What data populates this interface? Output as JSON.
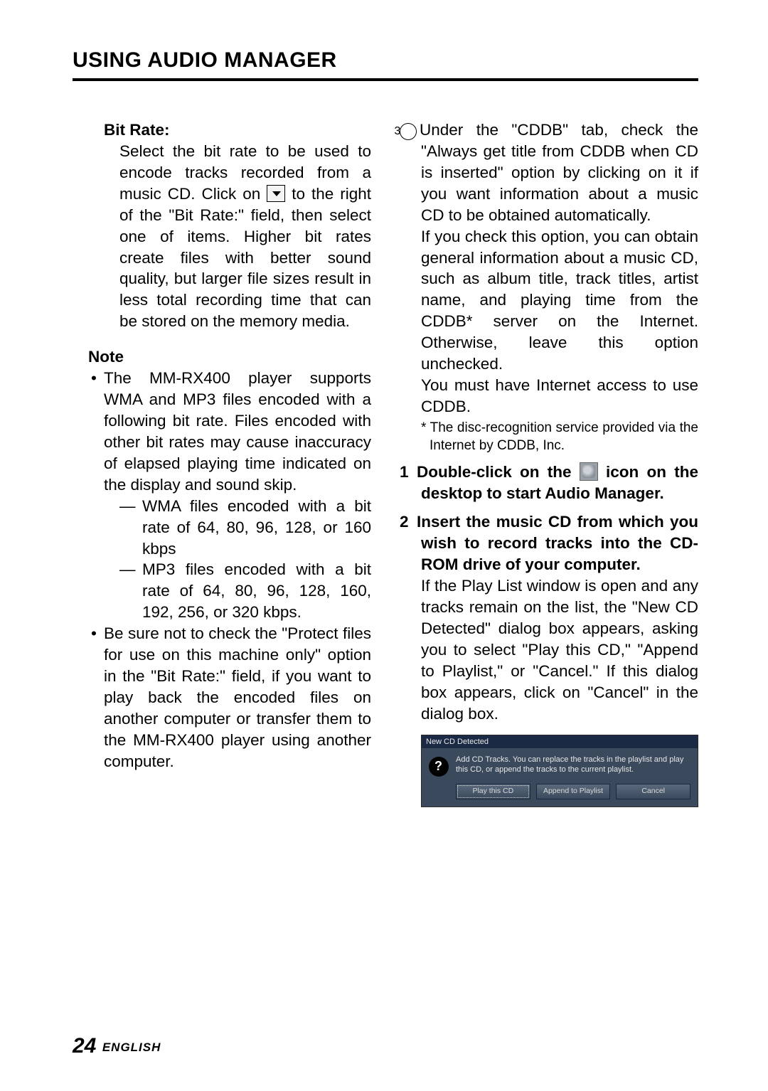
{
  "title": "USING AUDIO MANAGER",
  "left": {
    "bitrate_label": "Bit Rate:",
    "bitrate_body_a": "Select the bit rate to be used to encode tracks recorded from a music CD. Click on",
    "bitrate_body_b": "to the right of the \"Bit Rate:\" field, then select one of items. Higher bit rates create files with better sound quality, but larger file sizes result in less total recording time that can be stored on the memory media.",
    "note_label": "Note",
    "note1": "The MM-RX400 player supports WMA and MP3 files encoded with a following bit rate. Files encoded with other bit rates may cause inaccuracy of elapsed playing time indicated on the display and sound skip.",
    "dash1": "WMA files encoded with a bit rate of 64, 80, 96, 128, or 160 kbps",
    "dash2": "MP3 files encoded with a bit rate of 64, 80, 96, 128, 160, 192, 256, or 320 kbps.",
    "note2": "Be sure not to check the \"Protect files for use on this machine only\" option in the \"Bit Rate:\" field, if you want to play back the encoded files on another computer or transfer them to the MM-RX400 player using another computer."
  },
  "right": {
    "step3_num": "3",
    "step3_a": "Under the \"CDDB\" tab, check the \"Always get title from CDDB when CD is inserted\" option by clicking on it if you want information about a music CD to be obtained automatically.",
    "step3_b": "If you check this option, you can obtain general information about a music CD, such as album title, track titles, artist name, and playing time from the CDDB* server on the Internet. Otherwise, leave this option unchecked.",
    "step3_c": "You must have Internet access to use CDDB.",
    "footnote": "* The disc-recognition service provided via the Internet by CDDB, Inc.",
    "s1_num": "1",
    "s1_a": "Double-click on the",
    "s1_b": "icon on the desktop to start Audio Manager.",
    "s2_num": "2",
    "s2_bold": "Insert the music CD from which you wish to record tracks into the CD-ROM drive of your computer.",
    "s2_body": "If the Play List window is open and any tracks remain on the list, the \"New CD Detected\" dialog box appears, asking you to select \"Play this CD,\" \"Append to Playlist,\" or \"Cancel.\" If this dialog box appears, click on \"Cancel\" in the dialog box."
  },
  "dialog": {
    "title": "New CD Detected",
    "msg": "Add CD Tracks.  You can replace the tracks in the playlist and play this CD, or append the tracks to the current playlist.",
    "btn1": "Play this CD",
    "btn2": "Append to Playlist",
    "btn3": "Cancel"
  },
  "footer": {
    "page": "24",
    "lang": "ENGLISH"
  }
}
